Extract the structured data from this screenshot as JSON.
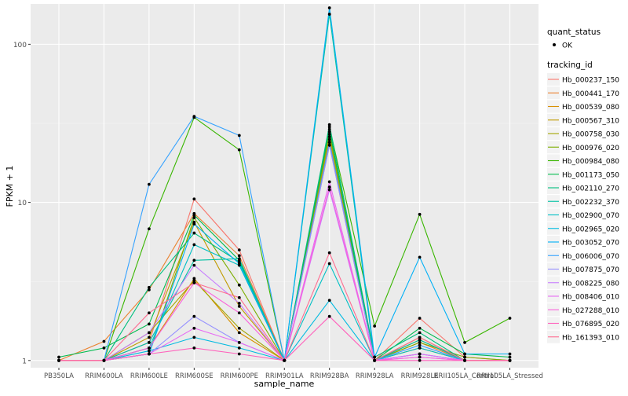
{
  "chart_data": {
    "type": "line",
    "xlabel": "sample_name",
    "ylabel": "FPKM + 1",
    "y_scale": "log10",
    "ylim": [
      0.9,
      180
    ],
    "y_ticks": [
      1,
      10,
      100
    ],
    "y_tick_labels": [
      "1",
      "10",
      "100"
    ],
    "categories": [
      "PB350LA",
      "RRIM600LA",
      "RRIM600LE",
      "RRIM600SE",
      "RRIM600PE",
      "RRIM901LA",
      "RRIM928BA",
      "RRIM928LA",
      "RRIM928LE",
      "RRII105LA_Control",
      "RRII105LA_Stressed"
    ],
    "grid": true,
    "panel_background": "#ebebeb",
    "legend": {
      "placement": "right",
      "shape_title": "quant_status",
      "shape_items": [
        "OK"
      ],
      "color_title": "tracking_id"
    },
    "series": [
      {
        "name": "Hb_000237_150",
        "color": "#F8766D",
        "values": [
          1.0,
          1.0,
          1.3,
          10.5,
          5.0,
          1.0,
          23.0,
          1.0,
          1.85,
          1.05,
          1.0
        ]
      },
      {
        "name": "Hb_000441_170",
        "color": "#EA8331",
        "values": [
          1.0,
          1.32,
          2.8,
          8.5,
          4.6,
          1.0,
          24.0,
          1.0,
          1.3,
          1.0,
          1.0
        ]
      },
      {
        "name": "Hb_000539_080",
        "color": "#D89000",
        "values": [
          1.0,
          1.0,
          1.2,
          3.3,
          1.5,
          1.0,
          25.0,
          1.0,
          1.2,
          1.0,
          1.0
        ]
      },
      {
        "name": "Hb_000567_310",
        "color": "#C09B00",
        "values": [
          1.0,
          1.0,
          1.4,
          7.5,
          2.2,
          1.0,
          26.0,
          1.0,
          1.35,
          1.0,
          1.0
        ]
      },
      {
        "name": "Hb_000758_030",
        "color": "#A3A500",
        "values": [
          1.0,
          1.0,
          1.5,
          3.2,
          1.6,
          1.0,
          27.0,
          1.0,
          1.4,
          1.0,
          1.0
        ]
      },
      {
        "name": "Hb_000976_020",
        "color": "#7CAE00",
        "values": [
          1.0,
          1.0,
          1.1,
          8.0,
          3.0,
          1.0,
          28.0,
          1.0,
          1.3,
          1.05,
          1.0
        ]
      },
      {
        "name": "Hb_000984_080",
        "color": "#39B600",
        "values": [
          1.0,
          1.0,
          6.8,
          34.5,
          21.5,
          1.0,
          30.0,
          1.65,
          8.4,
          1.3,
          1.85
        ]
      },
      {
        "name": "Hb_001173_050",
        "color": "#00BB4E",
        "values": [
          1.05,
          1.2,
          1.7,
          8.3,
          4.3,
          1.0,
          29.0,
          1.0,
          1.6,
          1.1,
          1.05
        ]
      },
      {
        "name": "Hb_002110_270",
        "color": "#00BF7D",
        "values": [
          1.0,
          1.0,
          2.9,
          6.4,
          4.2,
          1.0,
          31.0,
          1.05,
          1.5,
          1.0,
          1.0
        ]
      },
      {
        "name": "Hb_002232_370",
        "color": "#00C1A3",
        "values": [
          1.0,
          1.0,
          1.3,
          4.3,
          4.4,
          1.0,
          155.0,
          1.0,
          1.35,
          1.0,
          1.0
        ]
      },
      {
        "name": "Hb_002900_070",
        "color": "#00BFC4",
        "values": [
          1.0,
          1.0,
          1.2,
          5.4,
          4.0,
          1.0,
          4.1,
          1.0,
          1.2,
          1.0,
          1.0
        ]
      },
      {
        "name": "Hb_002965_020",
        "color": "#00BAE0",
        "values": [
          1.0,
          1.0,
          1.15,
          1.4,
          1.2,
          1.0,
          2.4,
          1.0,
          1.1,
          1.0,
          1.0
        ]
      },
      {
        "name": "Hb_003052_070",
        "color": "#00B0F6",
        "values": [
          1.0,
          1.0,
          1.1,
          7.3,
          4.1,
          1.0,
          170.0,
          1.05,
          4.5,
          1.1,
          1.1
        ]
      },
      {
        "name": "Hb_006006_070",
        "color": "#35A2FF",
        "values": [
          1.0,
          1.0,
          13.0,
          35.0,
          26.5,
          1.0,
          24.0,
          1.0,
          1.25,
          1.0,
          1.0
        ]
      },
      {
        "name": "Hb_007875_070",
        "color": "#9590FF",
        "values": [
          1.0,
          1.0,
          1.1,
          1.9,
          1.3,
          1.0,
          23.0,
          1.0,
          1.1,
          1.0,
          1.0
        ]
      },
      {
        "name": "Hb_008225_080",
        "color": "#C77CFF",
        "values": [
          1.0,
          1.0,
          1.5,
          4.0,
          2.3,
          1.0,
          12.0,
          1.0,
          1.05,
          1.0,
          1.0
        ]
      },
      {
        "name": "Hb_008406_010",
        "color": "#E76BF3",
        "values": [
          1.0,
          1.0,
          1.1,
          1.6,
          1.3,
          1.0,
          13.5,
          1.0,
          1.1,
          1.0,
          1.0
        ]
      },
      {
        "name": "Hb_027288_010",
        "color": "#FA62DB",
        "values": [
          1.0,
          1.0,
          1.2,
          3.1,
          2.0,
          1.0,
          12.5,
          1.0,
          1.05,
          1.0,
          1.0
        ]
      },
      {
        "name": "Hb_076895_020",
        "color": "#FF62BC",
        "values": [
          1.0,
          1.0,
          1.1,
          1.2,
          1.1,
          1.0,
          1.9,
          1.0,
          1.0,
          1.0,
          1.0
        ]
      },
      {
        "name": "Hb_161393_010",
        "color": "#FF6C91",
        "values": [
          1.0,
          1.0,
          2.0,
          3.1,
          2.5,
          1.0,
          4.8,
          1.0,
          1.4,
          1.0,
          1.0
        ]
      }
    ]
  }
}
